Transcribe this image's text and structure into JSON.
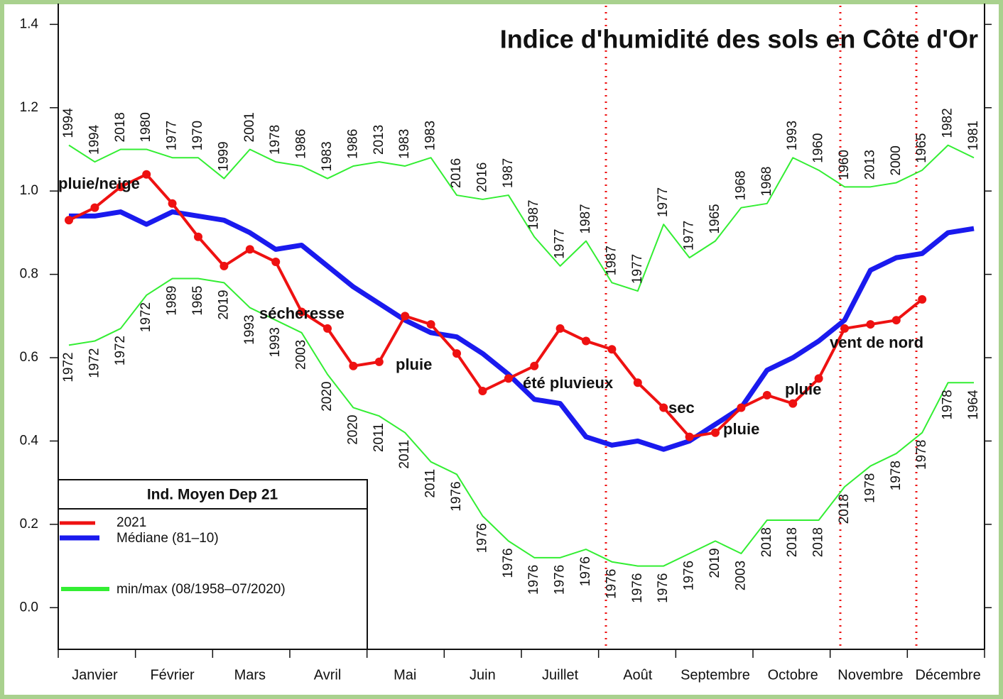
{
  "chart_data": {
    "type": "line",
    "title": "Indice d'humidité des sols en Côte d'Or",
    "legend_title": "Ind. Moyen Dep 21",
    "categories": [
      null,
      "Janvier",
      null,
      null,
      "Février",
      null,
      null,
      "Mars",
      null,
      null,
      "Avril",
      null,
      null,
      "Mai",
      null,
      null,
      "Juin",
      null,
      null,
      "Juillet",
      null,
      null,
      "Août",
      null,
      null,
      "Septembre",
      null,
      null,
      "Octobre",
      null,
      null,
      "Novembre",
      null,
      null,
      "Décembre",
      null
    ],
    "ylim": [
      -0.1,
      1.45
    ],
    "yticks": [
      {
        "value": 0,
        "label": "0.0"
      },
      0.2,
      0.4,
      0.6,
      0.8,
      {
        "value": 1,
        "label": "1.0"
      },
      1.2,
      1.4
    ],
    "series": [
      {
        "name": "min/max (08/1958–07/2020)",
        "color": "#33ee33",
        "high": [
          1.11,
          1.07,
          1.1,
          1.1,
          1.08,
          1.08,
          1.03,
          1.1,
          1.07,
          1.06,
          1.03,
          1.06,
          1.07,
          1.06,
          1.08,
          0.99,
          0.98,
          0.99,
          0.89,
          0.82,
          0.88,
          0.78,
          0.76,
          0.92,
          0.84,
          0.88,
          0.96,
          0.97,
          1.08,
          1.05,
          1.01,
          1.01,
          1.02,
          1.05,
          1.11,
          1.08
        ],
        "high_labels": [
          "1994",
          "1994",
          "2018",
          "1980",
          "1977",
          "1970",
          "1999",
          "2001",
          "1978",
          "1986",
          "1983",
          "1986",
          "2013",
          "1983",
          "1983",
          "2016",
          "2016",
          "1987",
          "1987",
          "1977",
          "1987",
          "1987",
          "1977",
          "1977",
          "1977",
          "1965",
          "1968",
          "1968",
          "1993",
          "1960",
          "1960",
          "2013",
          "2000",
          "1965",
          "1982",
          "1981"
        ],
        "low": [
          0.63,
          0.64,
          0.67,
          0.75,
          0.79,
          0.79,
          0.78,
          0.72,
          0.69,
          0.66,
          0.56,
          0.48,
          0.46,
          0.42,
          0.35,
          0.32,
          0.22,
          0.16,
          0.12,
          0.12,
          0.14,
          0.11,
          0.1,
          0.1,
          0.13,
          0.16,
          0.13,
          0.21,
          0.21,
          0.21,
          0.29,
          0.34,
          0.37,
          0.42,
          0.54,
          0.54
        ],
        "low_labels": [
          "1972",
          "1972",
          "1972",
          "1972",
          "1989",
          "1965",
          "2019",
          "1993",
          "1993",
          "2003",
          "2020",
          "2020",
          "2011",
          "2011",
          "2011",
          "1976",
          "1976",
          "1976",
          "1976",
          "1976",
          "1976",
          "1976",
          "1976",
          "1976",
          "1976",
          "2019",
          "2003",
          "2018",
          "2018",
          "2018",
          "2018",
          "1978",
          "1978",
          "1978",
          "1978",
          "1964"
        ]
      },
      {
        "name": "Médiane (81–10)",
        "color": "#1a1aee",
        "values": [
          0.94,
          0.94,
          0.95,
          0.92,
          0.95,
          0.94,
          0.93,
          0.9,
          0.86,
          0.87,
          0.82,
          0.77,
          0.73,
          0.69,
          0.66,
          0.65,
          0.61,
          0.56,
          0.5,
          0.49,
          0.41,
          0.39,
          0.4,
          0.38,
          0.4,
          0.44,
          0.48,
          0.57,
          0.6,
          0.64,
          0.69,
          0.81,
          0.84,
          0.85,
          0.9,
          0.91
        ]
      },
      {
        "name": "2021",
        "color": "#ee1111",
        "markers": true,
        "values": [
          0.93,
          0.96,
          1.01,
          1.04,
          0.97,
          0.89,
          0.82,
          0.86,
          0.83,
          0.71,
          0.67,
          0.58,
          0.59,
          0.7,
          0.68,
          0.61,
          0.52,
          0.55,
          0.58,
          0.67,
          0.64,
          0.62,
          0.54,
          0.48,
          0.41,
          0.42,
          0.48,
          0.51,
          0.49,
          0.55,
          0.67,
          0.68,
          0.69,
          0.74,
          null,
          null
        ]
      }
    ],
    "annotations": [
      "pluie/neige",
      "sécheresse",
      "pluie",
      "été pluvieux",
      "sec",
      "pluie",
      "pluie",
      "vent de nord"
    ]
  }
}
